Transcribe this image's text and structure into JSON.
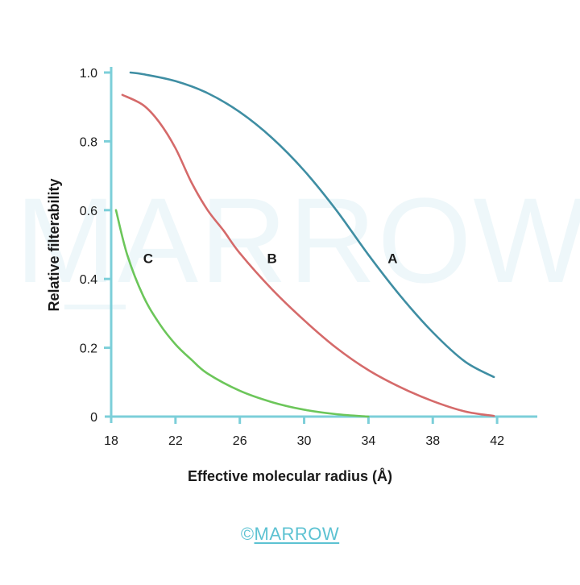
{
  "watermark": "MARROW",
  "footer": {
    "copyright": "©",
    "brand": "MARROW"
  },
  "colors": {
    "axis": "#7ccfd9",
    "A": "#3f8ea3",
    "B": "#d56a6a",
    "C": "#6cc65a",
    "watermark": "#eef7fa",
    "brand": "#5cc2d2"
  },
  "chart_data": {
    "type": "line",
    "title": "",
    "xlabel": "Effective molecular radius (Å)",
    "ylabel": "Relative filterability",
    "xlim": [
      18,
      44.5
    ],
    "ylim": [
      0,
      1.0
    ],
    "x_ticks": [
      18,
      22,
      26,
      30,
      34,
      38,
      42
    ],
    "y_ticks": [
      0,
      0.2,
      0.4,
      0.6,
      0.8,
      1.0
    ],
    "x_tick_labels": [
      "18",
      "22",
      "26",
      "30",
      "34",
      "38",
      "42"
    ],
    "y_tick_labels": [
      "0",
      "0.2",
      "0.4",
      "0.6",
      "0.8",
      "1.0"
    ],
    "grid": false,
    "series": [
      {
        "name": "A",
        "color": "#3f8ea3",
        "label_at": [
          35.5,
          0.46
        ],
        "points": [
          [
            19.2,
            1.0
          ],
          [
            20,
            0.995
          ],
          [
            22,
            0.975
          ],
          [
            24,
            0.94
          ],
          [
            26,
            0.885
          ],
          [
            28,
            0.81
          ],
          [
            30,
            0.715
          ],
          [
            32,
            0.6
          ],
          [
            34,
            0.47
          ],
          [
            36,
            0.35
          ],
          [
            38,
            0.245
          ],
          [
            40,
            0.16
          ],
          [
            41.8,
            0.115
          ]
        ]
      },
      {
        "name": "B",
        "color": "#d56a6a",
        "label_at": [
          28,
          0.46
        ],
        "points": [
          [
            18.7,
            0.935
          ],
          [
            20,
            0.905
          ],
          [
            21,
            0.855
          ],
          [
            22,
            0.78
          ],
          [
            23,
            0.68
          ],
          [
            24,
            0.6
          ],
          [
            25,
            0.54
          ],
          [
            26,
            0.475
          ],
          [
            28,
            0.37
          ],
          [
            30,
            0.28
          ],
          [
            32,
            0.2
          ],
          [
            34,
            0.135
          ],
          [
            36,
            0.085
          ],
          [
            38,
            0.045
          ],
          [
            40,
            0.015
          ],
          [
            41.8,
            0.002
          ]
        ]
      },
      {
        "name": "C",
        "color": "#6cc65a",
        "label_at": [
          20.3,
          0.46
        ],
        "points": [
          [
            18.3,
            0.6
          ],
          [
            19,
            0.47
          ],
          [
            20,
            0.35
          ],
          [
            21,
            0.27
          ],
          [
            22,
            0.21
          ],
          [
            23,
            0.165
          ],
          [
            24,
            0.125
          ],
          [
            26,
            0.075
          ],
          [
            28,
            0.042
          ],
          [
            30,
            0.02
          ],
          [
            32,
            0.007
          ],
          [
            34,
            0.0
          ]
        ]
      }
    ]
  }
}
